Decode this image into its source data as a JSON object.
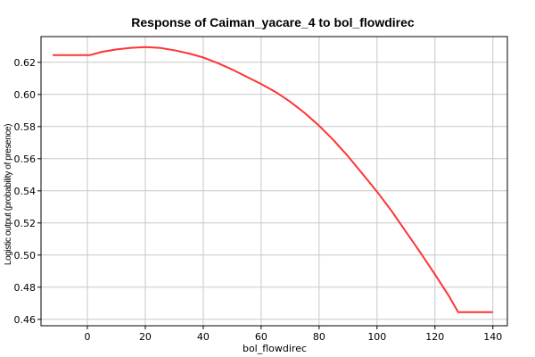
{
  "chart_data": {
    "type": "line",
    "title": "Response of Caiman_yacare_4 to bol_flowdirec",
    "xlabel": "bol_flowdirec",
    "ylabel": "Logistic output (probability of presence)",
    "xlim": [
      -16,
      145
    ],
    "ylim": [
      0.456,
      0.636
    ],
    "xticks": [
      0,
      20,
      40,
      60,
      80,
      100,
      120,
      140
    ],
    "yticks": [
      0.46,
      0.48,
      0.5,
      0.52,
      0.54,
      0.56,
      0.58,
      0.6,
      0.62
    ],
    "ytick_labels": [
      "0.46",
      "0.48",
      "0.50",
      "0.52",
      "0.54",
      "0.56",
      "0.58",
      "0.60",
      "0.62"
    ],
    "grid": true,
    "series": [
      {
        "color": "#ff3333",
        "x": [
          -12,
          1,
          5,
          10,
          15,
          20,
          25,
          30,
          35,
          40,
          45,
          50,
          55,
          60,
          65,
          70,
          75,
          80,
          85,
          90,
          95,
          100,
          105,
          110,
          115,
          120,
          125,
          128,
          140
        ],
        "y": [
          0.6245,
          0.6245,
          0.6265,
          0.628,
          0.629,
          0.6295,
          0.629,
          0.6275,
          0.6255,
          0.623,
          0.6195,
          0.6155,
          0.611,
          0.6065,
          0.6015,
          0.5955,
          0.5885,
          0.5805,
          0.5715,
          0.5615,
          0.5505,
          0.5395,
          0.5275,
          0.5145,
          0.5015,
          0.488,
          0.474,
          0.4645,
          0.4645
        ]
      }
    ]
  }
}
